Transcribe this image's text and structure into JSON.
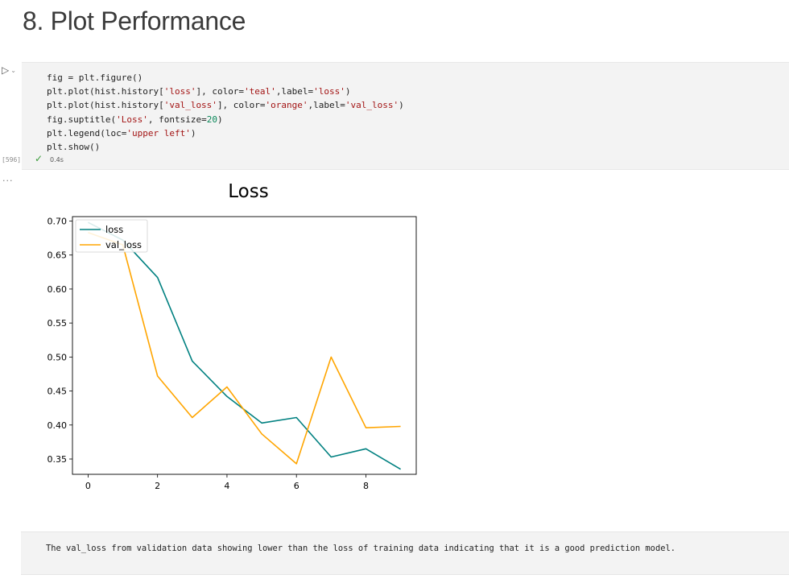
{
  "heading": "8. Plot Performance",
  "cell": {
    "execution_count": "[596]",
    "status_icon": "check-icon",
    "duration": "0.4s",
    "output_prompt": "...",
    "code_lines": [
      [
        {
          "t": "fig = plt.figure()",
          "c": ""
        }
      ],
      [
        {
          "t": "plt.plot(hist.history[",
          "c": ""
        },
        {
          "t": "'loss'",
          "c": "str"
        },
        {
          "t": "], color=",
          "c": ""
        },
        {
          "t": "'teal'",
          "c": "str"
        },
        {
          "t": ",label=",
          "c": ""
        },
        {
          "t": "'loss'",
          "c": "str"
        },
        {
          "t": ")",
          "c": ""
        }
      ],
      [
        {
          "t": "plt.plot(hist.history[",
          "c": ""
        },
        {
          "t": "'val_loss'",
          "c": "str"
        },
        {
          "t": "], color=",
          "c": ""
        },
        {
          "t": "'orange'",
          "c": "str"
        },
        {
          "t": ",label=",
          "c": ""
        },
        {
          "t": "'val_loss'",
          "c": "str"
        },
        {
          "t": ")",
          "c": ""
        }
      ],
      [
        {
          "t": "fig.suptitle(",
          "c": ""
        },
        {
          "t": "'Loss'",
          "c": "str"
        },
        {
          "t": ", fontsize=",
          "c": ""
        },
        {
          "t": "20",
          "c": "num"
        },
        {
          "t": ")",
          "c": ""
        }
      ],
      [
        {
          "t": "plt.legend(loc=",
          "c": ""
        },
        {
          "t": "'upper left'",
          "c": "str"
        },
        {
          "t": ")",
          "c": ""
        }
      ],
      [
        {
          "t": "plt.show()",
          "c": ""
        }
      ]
    ]
  },
  "markdown_text": "The val_loss from validation data showing lower than the loss of training data indicating that it is a good prediction model.",
  "chart_data": {
    "type": "line",
    "title": "Loss",
    "x": [
      0,
      1,
      2,
      3,
      4,
      5,
      6,
      7,
      8,
      9
    ],
    "series": [
      {
        "name": "loss",
        "color": "#008080",
        "values": [
          0.698,
          0.672,
          0.617,
          0.494,
          0.442,
          0.403,
          0.411,
          0.353,
          0.365,
          0.335
        ]
      },
      {
        "name": "val_loss",
        "color": "#ffa500",
        "values": [
          0.683,
          0.665,
          0.472,
          0.411,
          0.456,
          0.387,
          0.343,
          0.5,
          0.396,
          0.398
        ]
      }
    ],
    "xlim": [
      -0.45,
      9.45
    ],
    "ylim": [
      0.3275,
      0.7065
    ],
    "xticks": [
      0,
      2,
      4,
      6,
      8
    ],
    "yticks": [
      0.35,
      0.4,
      0.45,
      0.5,
      0.55,
      0.6,
      0.65,
      0.7
    ],
    "ytick_labels": [
      "0.35",
      "0.40",
      "0.45",
      "0.50",
      "0.55",
      "0.60",
      "0.65",
      "0.70"
    ],
    "legend_loc": "upper left",
    "xlabel": "",
    "ylabel": ""
  }
}
